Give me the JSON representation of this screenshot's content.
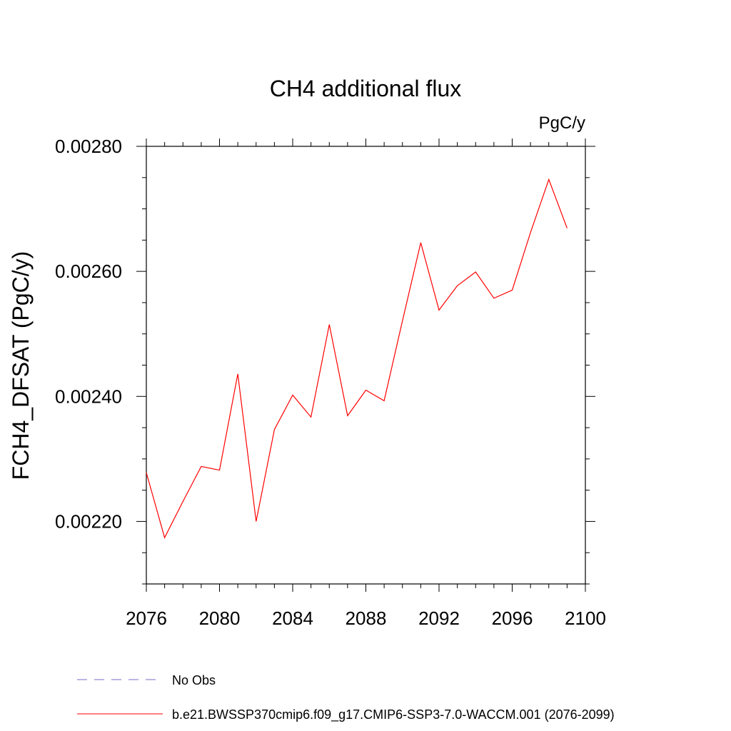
{
  "chart_data": {
    "type": "line",
    "title": "CH4 additional flux",
    "units_label": "PgC/y",
    "ylabel": "FCH4_DFSAT  (PgC/y)",
    "xlabel": "",
    "xlim": [
      2076,
      2100
    ],
    "ylim": [
      0.0021,
      0.0028
    ],
    "x_ticks": [
      2076,
      2080,
      2084,
      2088,
      2092,
      2096,
      2100
    ],
    "x_tick_labels": [
      "2076",
      "2080",
      "2084",
      "2088",
      "2092",
      "2096",
      "2100"
    ],
    "y_ticks": [
      0.0022,
      0.0024,
      0.0026,
      0.0028
    ],
    "y_tick_labels": [
      "0.00220",
      "0.00240",
      "0.00260",
      "0.00280"
    ],
    "grid": false,
    "legend_placement": "bottom",
    "series": [
      {
        "name": "b.e21.BWSSP370cmip6.f09_g17.CMIP6-SSP3-7.0-WACCM.001 (2076-2099)",
        "color": "#ff0000",
        "style": "solid",
        "x": [
          2076,
          2077,
          2078,
          2079,
          2080,
          2081,
          2082,
          2083,
          2084,
          2085,
          2086,
          2087,
          2088,
          2089,
          2090,
          2091,
          2092,
          2093,
          2094,
          2095,
          2096,
          2097,
          2098,
          2099
        ],
        "y": [
          0.002278,
          0.002174,
          0.002232,
          0.002288,
          0.002282,
          0.002436,
          0.0022,
          0.002347,
          0.002402,
          0.002367,
          0.002515,
          0.002369,
          0.00241,
          0.002393,
          0.002521,
          0.002646,
          0.002538,
          0.002577,
          0.002599,
          0.002557,
          0.00257,
          0.002662,
          0.002747,
          0.002669
        ]
      }
    ],
    "legend": [
      {
        "label": "No Obs",
        "color": "#7b68c8",
        "style": "dashed"
      },
      {
        "label": "b.e21.BWSSP370cmip6.f09_g17.CMIP6-SSP3-7.0-WACCM.001 (2076-2099)",
        "color": "#ff0000",
        "style": "solid"
      }
    ]
  }
}
